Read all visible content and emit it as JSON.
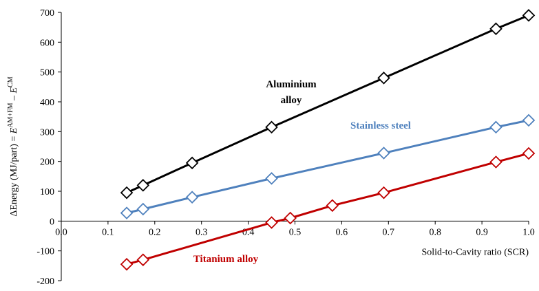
{
  "chart_data": {
    "type": "line",
    "xlabel": "Solid-to-Cavity ratio (SCR)",
    "ylabel": {
      "prefix": "ΔEnergy (MJ/part) = ",
      "e1": "E",
      "sup1": "AM+FM",
      "minus": " – ",
      "e2": "E",
      "sup2": "CM"
    },
    "xlim": [
      0.0,
      1.0
    ],
    "ylim": [
      -200,
      700
    ],
    "xticks": [
      "0.0",
      "0.1",
      "0.2",
      "0.3",
      "0.4",
      "0.5",
      "0.6",
      "0.7",
      "0.8",
      "0.9",
      "1.0"
    ],
    "yticks": [
      "-200",
      "-100",
      "0",
      "100",
      "200",
      "300",
      "400",
      "500",
      "600",
      "700"
    ],
    "grid": false,
    "legend": "none",
    "series": [
      {
        "name": "Aluminium alloy",
        "label_lines": [
          "Aluminium",
          "alloy"
        ],
        "color": "#000000",
        "marker": "open-diamond",
        "x": [
          0.14,
          0.175,
          0.28,
          0.45,
          0.69,
          0.93,
          1.0
        ],
        "y": [
          95,
          120,
          195,
          315,
          480,
          645,
          690
        ]
      },
      {
        "name": "Stainless steel",
        "label_lines": [
          "Stainless steel"
        ],
        "color": "#4f81bd",
        "marker": "open-diamond",
        "x": [
          0.14,
          0.175,
          0.28,
          0.45,
          0.69,
          0.93,
          1.0
        ],
        "y": [
          27,
          40,
          80,
          143,
          228,
          315,
          338
        ]
      },
      {
        "name": "Titanium alloy",
        "label_lines": [
          "Titanium alloy"
        ],
        "color": "#c00000",
        "marker": "open-diamond",
        "x": [
          0.14,
          0.175,
          0.45,
          0.49,
          0.58,
          0.69,
          0.93,
          1.0
        ],
        "y": [
          -145,
          -130,
          -5,
          10,
          52,
          95,
          198,
          227
        ]
      }
    ]
  }
}
